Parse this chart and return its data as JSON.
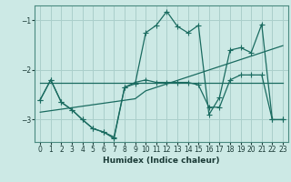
{
  "xlabel": "Humidex (Indice chaleur)",
  "background_color": "#cce9e5",
  "grid_color": "#aacfcb",
  "line_color": "#1a6b60",
  "xlim": [
    -0.5,
    23.5
  ],
  "ylim": [
    -3.45,
    -0.7
  ],
  "yticks": [
    -3,
    -2,
    -1
  ],
  "xticks": [
    0,
    1,
    2,
    3,
    4,
    5,
    6,
    7,
    8,
    9,
    10,
    11,
    12,
    13,
    14,
    15,
    16,
    17,
    18,
    19,
    20,
    21,
    22,
    23
  ],
  "s1_x": [
    0,
    1,
    2,
    3,
    4,
    5,
    6,
    7,
    8,
    9,
    10,
    11,
    12,
    13,
    14,
    15,
    16,
    17,
    18,
    19,
    20,
    21,
    22,
    23
  ],
  "s1_y": [
    -2.25,
    -2.25,
    -2.25,
    -2.25,
    -2.25,
    -2.25,
    -2.25,
    -2.25,
    -2.25,
    -2.25,
    -2.25,
    -2.25,
    -2.25,
    -2.25,
    -2.25,
    -2.25,
    -2.25,
    -2.25,
    -2.25,
    -2.25,
    -2.25,
    -2.25,
    -2.25,
    -2.25
  ],
  "s2_x": [
    0,
    1,
    2,
    3,
    4,
    5,
    6,
    7,
    8,
    9,
    10,
    11,
    12,
    13,
    14,
    15,
    16,
    17,
    18,
    19,
    20,
    21,
    22,
    23
  ],
  "s2_y": [
    -2.85,
    -2.82,
    -2.79,
    -2.76,
    -2.73,
    -2.7,
    -2.67,
    -2.64,
    -2.61,
    -2.58,
    -2.42,
    -2.35,
    -2.28,
    -2.21,
    -2.14,
    -2.07,
    -2.0,
    -1.93,
    -1.86,
    -1.79,
    -1.72,
    -1.65,
    -1.58,
    -1.51
  ],
  "s3_x": [
    0,
    1,
    2,
    3,
    4,
    5,
    6,
    7,
    8,
    9,
    10,
    11,
    12,
    13,
    14,
    15,
    16,
    17,
    18,
    19,
    20,
    21,
    22,
    23
  ],
  "s3_y": [
    -2.6,
    -2.2,
    -2.65,
    -2.8,
    -3.0,
    -3.18,
    -3.25,
    -3.38,
    -2.35,
    -2.25,
    -2.2,
    -2.25,
    -2.25,
    -2.25,
    -2.25,
    -2.3,
    -2.75,
    -2.75,
    -2.2,
    -2.1,
    -2.1,
    -2.1,
    -3.0,
    -3.0
  ],
  "s4_x": [
    0,
    1,
    2,
    3,
    4,
    5,
    6,
    7,
    8,
    9,
    10,
    11,
    12,
    13,
    14,
    15,
    16,
    17,
    18,
    19,
    20,
    21,
    22,
    23
  ],
  "s4_y": [
    -2.6,
    -2.2,
    -2.65,
    -2.8,
    -3.0,
    -3.18,
    -3.25,
    -3.35,
    -2.35,
    -2.28,
    -1.25,
    -1.1,
    -0.82,
    -1.12,
    -1.25,
    -1.1,
    -2.9,
    -2.55,
    -1.6,
    -1.55,
    -1.65,
    -1.08,
    -3.0,
    -3.0
  ]
}
